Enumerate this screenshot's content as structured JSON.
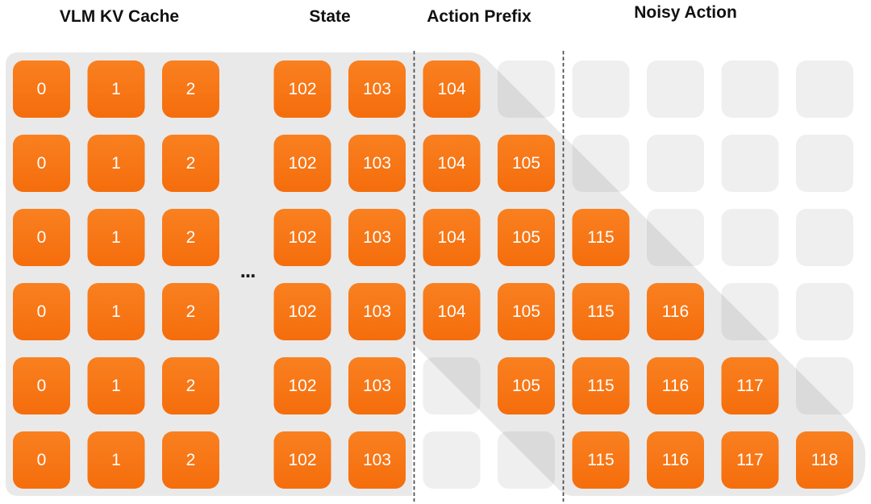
{
  "figure": {
    "sections": [
      {
        "label": "VLM KV Cache"
      },
      {
        "label": "State"
      },
      {
        "label": "Action Prefix"
      },
      {
        "label": "Noisy Action"
      }
    ],
    "ellipsis": "...",
    "colors": {
      "token_top": "#F98020",
      "token_bottom": "#F56D0C",
      "region_bg": "#E9E9E9",
      "empty_cell": "rgba(0,0,0,0.062)",
      "cell_text": "#FFFFFF",
      "label_text": "#111111",
      "separator": "#4A4A4A",
      "ellipsis_color": "#1C1C1C"
    },
    "grid": {
      "column_ids": [
        "0",
        "1",
        "2",
        "102",
        "103",
        "104",
        "105",
        "115",
        "116",
        "117",
        "118"
      ],
      "rows": [
        [
          "0",
          "1",
          "2",
          "102",
          "103",
          "104",
          "",
          "",
          "",
          "",
          ""
        ],
        [
          "0",
          "1",
          "2",
          "102",
          "103",
          "104",
          "105",
          "",
          "",
          "",
          ""
        ],
        [
          "0",
          "1",
          "2",
          "102",
          "103",
          "104",
          "105",
          "115",
          "",
          "",
          ""
        ],
        [
          "0",
          "1",
          "2",
          "102",
          "103",
          "104",
          "105",
          "115",
          "116",
          "",
          ""
        ],
        [
          "0",
          "1",
          "2",
          "102",
          "103",
          "",
          "105",
          "115",
          "116",
          "117",
          ""
        ],
        [
          "0",
          "1",
          "2",
          "102",
          "103",
          "",
          "",
          "115",
          "116",
          "117",
          "118"
        ]
      ]
    }
  }
}
